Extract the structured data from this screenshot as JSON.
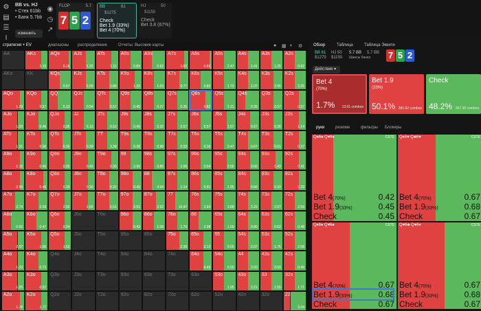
{
  "spot": {
    "title": "BB vs. HJ",
    "stack": "• Стек 61bb",
    "bank": "• Банк 5.7bb",
    "change_label": "изменить"
  },
  "flop": {
    "label": "FLOP",
    "pot": "5.7",
    "cards": [
      "7",
      "5",
      "2"
    ],
    "card_colors": [
      "#d22f2f",
      "#29a34a",
      "#2d5bd1"
    ]
  },
  "bb_box": {
    "pos": "BB",
    "stack": "61",
    "pot": "$1275",
    "actions": [
      "Check",
      "Bet 1.9",
      "Bet 4"
    ],
    "pcts": [
      "",
      "(33%)",
      "(70%)"
    ]
  },
  "hj_box": {
    "pos": "HJ",
    "stack": "50",
    "pot": "$1150",
    "actions": [
      "Check",
      "Bet 3.8"
    ],
    "pcts": [
      "",
      "(67%)"
    ]
  },
  "subtabs": [
    "стратегия + EV",
    "диапазоны",
    "распределение",
    "Отчеты: Высокие карты"
  ],
  "grid": {
    "selected": "Q6s",
    "rows": [
      [
        [
          "AA",
          0,
          0,
          1
        ],
        [
          "AKs",
          0.3,
          2.15,
          0
        ],
        [
          "AQs",
          0.1,
          0.16,
          0
        ],
        [
          "AJs",
          0.4,
          1.32,
          0
        ],
        [
          "ATs",
          0.3,
          1.11,
          0
        ],
        [
          "A9s",
          0.5,
          0.89,
          0
        ],
        [
          "A8s",
          0.6,
          0.62,
          0
        ],
        [
          "A7s",
          0.2,
          1.02,
          0
        ],
        [
          "A6s",
          0.1,
          0.83,
          0
        ],
        [
          "A5s",
          0.5,
          2.47,
          0
        ],
        [
          "A4s",
          0.5,
          1.41,
          0
        ],
        [
          "A3s",
          0.5,
          1.25,
          0
        ],
        [
          "A2s",
          0.5,
          0.92,
          0
        ]
      ],
      [
        [
          "AKo",
          0,
          0,
          1
        ],
        [
          "KK",
          0,
          0,
          1
        ],
        [
          "KQs",
          0.5,
          0.57,
          0
        ],
        [
          "KJs",
          0.4,
          2.05,
          0
        ],
        [
          "KTs",
          0.4,
          1.85,
          0
        ],
        [
          "K9s",
          0.3,
          1.23,
          0
        ],
        [
          "K8s",
          0.5,
          1.03,
          0
        ],
        [
          "K7s",
          0.4,
          0.77,
          0
        ],
        [
          "K6s",
          0.5,
          0.82,
          0
        ],
        [
          "K5s",
          0.5,
          1.73,
          0
        ],
        [
          "K4s",
          0.5,
          1.07,
          0
        ],
        [
          "K3s",
          0.4,
          2.05,
          0
        ],
        [
          "K2s",
          0.5,
          2.25,
          0
        ]
      ],
      [
        [
          "AQo",
          0.2,
          1.29,
          0
        ],
        [
          "KQo",
          0.3,
          0.57,
          0
        ],
        [
          "QQ",
          0.6,
          5.13,
          0
        ],
        [
          "QJs",
          0.5,
          0.54,
          0
        ],
        [
          "QTs",
          0.4,
          0.57,
          0
        ],
        [
          "Q9s",
          0.5,
          0.45,
          0
        ],
        [
          "Q8s",
          0.5,
          0.27,
          0
        ],
        [
          "Q7s",
          0.5,
          0.35,
          0
        ],
        [
          "Q6s",
          0.3,
          0.62,
          0
        ],
        [
          "Q5s",
          0.5,
          2.31,
          0
        ],
        [
          "Q4s",
          0.6,
          0.35,
          0
        ],
        [
          "Q3s",
          0.4,
          0.57,
          0
        ],
        [
          "Q2s",
          0.3,
          0.57,
          0
        ]
      ],
      [
        [
          "AJo",
          0.3,
          1.03,
          0
        ],
        [
          "KJo",
          0.4,
          0.46,
          0
        ],
        [
          "QJo",
          0.3,
          0.35,
          0
        ],
        [
          "JJ",
          0.5,
          5.13,
          0
        ],
        [
          "JTs",
          0.5,
          0.52,
          0
        ],
        [
          "J9s",
          0.5,
          0.49,
          0
        ],
        [
          "J8s",
          0.5,
          0.32,
          0
        ],
        [
          "J7s",
          0.5,
          0.57,
          0
        ],
        [
          "J6s",
          0.5,
          0.57,
          0
        ],
        [
          "J5s",
          0.4,
          1.57,
          0
        ],
        [
          "J4s",
          0.4,
          0.67,
          0
        ],
        [
          "J3s",
          0.4,
          0.38,
          0
        ],
        [
          "J2s",
          0.3,
          1.14,
          0
        ]
      ],
      [
        [
          "ATo",
          0.3,
          1.31,
          0
        ],
        [
          "KTo",
          0.3,
          0.96,
          0
        ],
        [
          "QTo",
          0.4,
          0.35,
          0
        ],
        [
          "JTo",
          0.4,
          0.39,
          0
        ],
        [
          "TT",
          0.5,
          3.38,
          0
        ],
        [
          "T9s",
          0.5,
          0.38,
          0
        ],
        [
          "T8s",
          0.5,
          0.98,
          0
        ],
        [
          "T7s",
          0.5,
          0.53,
          0
        ],
        [
          "T6s",
          0.5,
          0.39,
          0
        ],
        [
          "T5s",
          0.5,
          0.47,
          0
        ],
        [
          "T4s",
          0.5,
          0.67,
          0
        ],
        [
          "T3s",
          0.4,
          0.61,
          0
        ],
        [
          "T2s",
          0.3,
          0.37,
          0
        ]
      ],
      [
        [
          "A9o",
          0.2,
          1.16,
          0
        ],
        [
          "K9o",
          0.3,
          0.46,
          0
        ],
        [
          "Q9o",
          0.3,
          0.35,
          0
        ],
        [
          "J9o",
          0.3,
          0.43,
          0
        ],
        [
          "T9o",
          0.3,
          0.39,
          0
        ],
        [
          "99",
          0.5,
          2.99,
          0
        ],
        [
          "98s",
          0.5,
          0.85,
          0
        ],
        [
          "97s",
          0.5,
          1.06,
          0
        ],
        [
          "96s",
          0.5,
          0.54,
          0
        ],
        [
          "95s",
          0.4,
          0.56,
          0
        ],
        [
          "94s",
          0.4,
          0.6,
          0
        ],
        [
          "93s",
          0.3,
          0.43,
          0
        ],
        [
          "92s",
          0.3,
          0.41,
          0
        ]
      ],
      [
        [
          "A8o",
          0.2,
          0.59,
          0
        ],
        [
          "K8o",
          0.2,
          0.46,
          0
        ],
        [
          "Q8o",
          0.3,
          0.18,
          0
        ],
        [
          "J8o",
          0.3,
          0.3,
          0
        ],
        [
          "T8o",
          0.4,
          0.32,
          0
        ],
        [
          "98o",
          0.4,
          0.49,
          0
        ],
        [
          "88",
          0.6,
          4.94,
          0
        ],
        [
          "87s",
          0.5,
          1.14,
          0
        ],
        [
          "86s",
          0.5,
          0.91,
          0
        ],
        [
          "85s",
          0.5,
          2.95,
          0
        ],
        [
          "84s",
          0.4,
          0.66,
          0
        ],
        [
          "83s",
          0.4,
          0.33,
          0
        ],
        [
          "82s",
          0.3,
          0.29,
          0
        ]
      ],
      [
        [
          "A7o",
          0.4,
          2.74,
          0
        ],
        [
          "K7o",
          0.4,
          2.59,
          0
        ],
        [
          "Q7o",
          0.3,
          2.02,
          0
        ],
        [
          "J7o",
          0.3,
          2.05,
          0
        ],
        [
          "T7o",
          0.4,
          2.51,
          0
        ],
        [
          "97o",
          0.4,
          2.51,
          0
        ],
        [
          "87o",
          0.4,
          2.52,
          0
        ],
        [
          "77",
          0.6,
          10.47,
          0
        ],
        [
          "76s",
          0.5,
          2.64,
          0
        ],
        [
          "75s",
          0.5,
          3.88,
          0
        ],
        [
          "74s",
          0.5,
          2.25,
          0
        ],
        [
          "73s",
          0.5,
          2.07,
          0
        ],
        [
          "72s",
          0.5,
          2.59,
          0
        ]
      ],
      [
        [
          "A6o",
          0.6,
          0.62,
          0
        ],
        [
          "K6o",
          0.5,
          0.47,
          0
        ],
        [
          "Q6o",
          0.3,
          0.24,
          0
        ],
        [
          "J6o",
          0,
          0,
          1
        ],
        [
          "T6o",
          0,
          0,
          1
        ],
        [
          "96o",
          0.4,
          0.43,
          0
        ],
        [
          "86o",
          0.5,
          1.08,
          0
        ],
        [
          "76o",
          0.5,
          1.76,
          0
        ],
        [
          "66",
          0.6,
          2.98,
          0
        ],
        [
          "65s",
          0.5,
          1.59,
          0
        ],
        [
          "64s",
          0.5,
          0.8,
          0
        ],
        [
          "63s",
          0.5,
          0.62,
          0
        ],
        [
          "62s",
          0.5,
          0.48,
          0
        ]
      ],
      [
        [
          "A5o",
          0.3,
          2.07,
          0
        ],
        [
          "K5o",
          0.3,
          1.65,
          0
        ],
        [
          "Q5o",
          0.3,
          1.52,
          0
        ],
        [
          "J5o",
          0,
          0,
          1
        ],
        [
          "T5o",
          0,
          0,
          1
        ],
        [
          "95o",
          0,
          0,
          1
        ],
        [
          "85o",
          0,
          0,
          1
        ],
        [
          "75o",
          0.4,
          2.39,
          0
        ],
        [
          "65o",
          0.4,
          2.12,
          0
        ],
        [
          "55",
          0.5,
          5.55,
          0
        ],
        [
          "54s",
          0.5,
          2.07,
          0
        ],
        [
          "53s",
          0.5,
          1.75,
          0
        ],
        [
          "52s",
          0.5,
          2.08,
          0
        ]
      ],
      [
        [
          "A4o",
          0.3,
          1.33,
          0
        ],
        [
          "K4o",
          0.4,
          0.71,
          0
        ],
        [
          "Q4o",
          0,
          0,
          1
        ],
        [
          "J4o",
          0,
          0,
          1
        ],
        [
          "T4o",
          0,
          0,
          1
        ],
        [
          "94o",
          0,
          0,
          1
        ],
        [
          "84o",
          0,
          0,
          1
        ],
        [
          "74o",
          0,
          0,
          1
        ],
        [
          "64o",
          0.4,
          0.49,
          0
        ],
        [
          "54o",
          0.5,
          0.5,
          0
        ],
        [
          "44",
          0.5,
          2.03,
          0
        ],
        [
          "43s",
          0.5,
          0.69,
          0
        ],
        [
          "42s",
          0.5,
          0.49,
          0
        ]
      ],
      [
        [
          "A3o",
          0.3,
          1.25,
          0
        ],
        [
          "K3o",
          0.3,
          0.57,
          0
        ],
        [
          "Q3o",
          0,
          0,
          1
        ],
        [
          "J3o",
          0,
          0,
          1
        ],
        [
          "T3o",
          0,
          0,
          1
        ],
        [
          "93o",
          0,
          0,
          1
        ],
        [
          "83o",
          0,
          0,
          1
        ],
        [
          "73o",
          0,
          0,
          1
        ],
        [
          "63o",
          0,
          0,
          1
        ],
        [
          "53o",
          0.5,
          1.95,
          0
        ],
        [
          "43o",
          0.5,
          2.21,
          0
        ],
        [
          "33",
          0.5,
          1.55,
          0
        ],
        [
          "32s",
          0.5,
          1.71,
          0
        ]
      ],
      [
        [
          "A2o",
          0.2,
          1.78,
          0
        ],
        [
          "K2o",
          0.3,
          1.77,
          0
        ],
        [
          "Q2o",
          0,
          0,
          1
        ],
        [
          "J2o",
          0,
          0,
          1
        ],
        [
          "T2o",
          0,
          0,
          1
        ],
        [
          "92o",
          0,
          0,
          1
        ],
        [
          "82o",
          0,
          0,
          1
        ],
        [
          "72o",
          0,
          0,
          1
        ],
        [
          "62o",
          0,
          0,
          1
        ],
        [
          "52o",
          0,
          0,
          1
        ],
        [
          "42o",
          0,
          0,
          1
        ],
        [
          "32o",
          0,
          0,
          1
        ],
        [
          "22",
          0.7,
          9.34,
          0
        ]
      ]
    ]
  },
  "right": {
    "tabs": [
      "Обзор",
      "Таблица",
      "Таблица Эквити"
    ],
    "info": {
      "bb": "BB 61",
      "bb_pot": "$1275",
      "hj": "HJ 50",
      "hj_pot": "$1150",
      "pot": "5.7 BB",
      "eq": "5.7 BB",
      "eq_label": "Шансы банка"
    },
    "actions_label": "Действия",
    "action_boxes": [
      {
        "name": "Bet 4",
        "size": "(70%)",
        "freq": "1.7%",
        "combos": "13.01 combos",
        "color": "#a92d2d"
      },
      {
        "name": "Bet 1.9",
        "size": "(33%)",
        "freq": "50.1%",
        "combos": "381.62 combos",
        "color": "#e04141"
      },
      {
        "name": "Check",
        "size": "",
        "freq": "48.2%",
        "combos": "367.36 combos",
        "color": "#5cb85c"
      }
    ],
    "lower_tabs": [
      "руки",
      "резюме",
      "фильтры",
      "Блокеры"
    ],
    "hands": [
      {
        "hdr": "Q♠6♠  Q♥6♦",
        "tag": "CSTE",
        "green": 0.75,
        "rows": [
          [
            "Bet 4",
            "(70%)",
            "0.42"
          ],
          [
            "Bet 1.9",
            "(33%)",
            "0.45"
          ],
          [
            "Check",
            "",
            "0.45"
          ]
        ]
      },
      {
        "hdr": "Q♦6♥  Q♣6♥",
        "tag": "CSTE",
        "green": 0.55,
        "rows": [
          [
            "Bet 4",
            "(70%)",
            "0.67"
          ],
          [
            "Bet 1.9",
            "(33%)",
            "0.68"
          ],
          [
            "Check",
            "",
            "0.67"
          ]
        ]
      },
      {
        "hdr": "Q♦6♦  Q♥6♠",
        "tag": "CSTE",
        "green": 0.55,
        "rows": [
          [
            "Bet 4",
            "(70%)",
            "0.67"
          ],
          [
            "Bet 1.9",
            "(33%)",
            "0.68"
          ],
          [
            "Check",
            "",
            "0.67"
          ]
        ]
      },
      {
        "hdr": "Q♥6♣  Q♥6♦",
        "tag": "CSTE",
        "green": 0.45,
        "rows": [
          [
            "Bet 4",
            "(70%)",
            "0.67"
          ],
          [
            "Bet 1.9",
            "(33%)",
            "0.68"
          ],
          [
            "Check",
            "",
            "0.67"
          ]
        ]
      }
    ]
  }
}
